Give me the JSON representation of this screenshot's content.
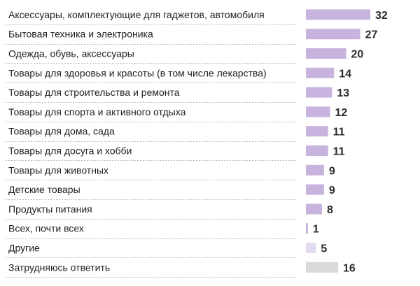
{
  "chart_data": {
    "type": "bar",
    "orientation": "horizontal",
    "categories": [
      "Аксессуары, комплектующие для гаджетов, автомобиля",
      "Бытовая техника и электроника",
      "Одежда, обувь, аксессуары",
      "Товары для здоровья и красоты (в том числе лекарства)",
      "Товары для строительства и ремонта",
      "Товары для спорта и активного отдыха",
      "Товары для дома, сада",
      "Товары для досуга и хобби",
      "Товары для животных",
      "Детские товары",
      "Продукты питания",
      "Всех, почти всех",
      "Другие",
      "Затрудняюсь ответить"
    ],
    "values": [
      32,
      27,
      20,
      14,
      13,
      12,
      11,
      11,
      9,
      9,
      8,
      1,
      5,
      16
    ],
    "value_labels": [
      "32",
      "27",
      "20",
      "14",
      "13",
      "12",
      "11",
      "11",
      "9",
      "9",
      "8",
      "1",
      "5",
      "16"
    ],
    "bar_colors": [
      "#c8b3de",
      "#c8b3de",
      "#c8b3de",
      "#c8b3de",
      "#c8b3de",
      "#c8b3de",
      "#c8b3de",
      "#c8b3de",
      "#c8b3de",
      "#c8b3de",
      "#c8b3de",
      "#c8b3de",
      "#e4daef",
      "#d9d9d9"
    ],
    "xlim": [
      0,
      32
    ],
    "grid": false,
    "legend": "none",
    "title": "",
    "xlabel": "",
    "ylabel": ""
  }
}
